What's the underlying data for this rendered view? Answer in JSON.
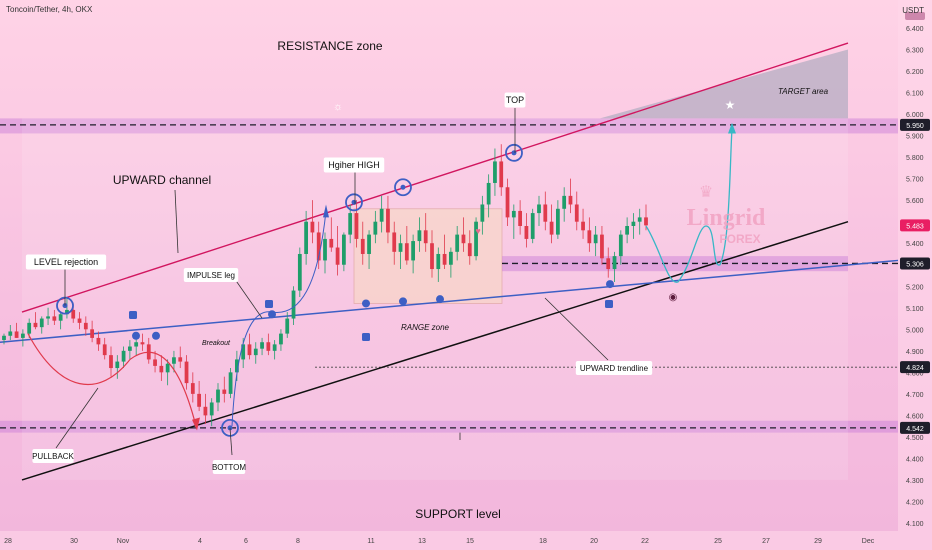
{
  "header": {
    "title": "Toncoin/Tether, 4h, OKX",
    "currency": "USDT"
  },
  "chart_data": {
    "type": "candlestick",
    "y_ticks": [
      4.1,
      4.2,
      4.3,
      4.4,
      4.5,
      4.6,
      4.7,
      4.8,
      4.9,
      5.0,
      5.1,
      5.2,
      5.3,
      5.4,
      5.5,
      5.6,
      5.7,
      5.8,
      5.9,
      6.0,
      6.1,
      6.2,
      6.3,
      6.4
    ],
    "y_tick_labels": [
      "4.100",
      "4.200",
      "4.300",
      "4.400",
      "4.500",
      "4.600",
      "4.700",
      "4.800",
      "4.900",
      "5.000",
      "5.100",
      "5.200",
      "5.300",
      "5.400",
      "5.500",
      "5.600",
      "5.700",
      "5.800",
      "5.900",
      "6.000",
      "6.100",
      "6.200",
      "6.300",
      "6.400"
    ],
    "x_ticks": [
      "28",
      "30",
      "Nov",
      "4",
      "6",
      "8",
      "11",
      "13",
      "15",
      "18",
      "20",
      "22",
      "25",
      "27",
      "29",
      "Dec"
    ],
    "price_badges": [
      {
        "label": "5.950",
        "value": 5.95,
        "color": "#ffffff",
        "bg": "#1e1e2a"
      },
      {
        "label": "5.483",
        "value": 5.483,
        "color": "#ffffff",
        "bg": "#e91e63"
      },
      {
        "label": "5.306",
        "value": 5.306,
        "color": "#ffffff",
        "bg": "#1e1e2a"
      },
      {
        "label": "4.824",
        "value": 4.824,
        "color": "#ffffff",
        "bg": "#1e1e2a"
      },
      {
        "label": "4.542",
        "value": 4.542,
        "color": "#ffffff",
        "bg": "#1e1e2a"
      }
    ],
    "candles": [
      [
        4.95,
        4.98,
        4.93,
        4.97
      ],
      [
        4.97,
        5.02,
        4.95,
        4.99
      ],
      [
        4.99,
        5.03,
        4.96,
        4.96
      ],
      [
        4.96,
        5.0,
        4.92,
        4.98
      ],
      [
        4.98,
        5.05,
        4.96,
        5.03
      ],
      [
        5.03,
        5.08,
        5.0,
        5.01
      ],
      [
        5.01,
        5.06,
        4.98,
        5.05
      ],
      [
        5.05,
        5.1,
        5.02,
        5.06
      ],
      [
        5.06,
        5.09,
        5.02,
        5.04
      ],
      [
        5.04,
        5.08,
        5.0,
        5.07
      ],
      [
        5.07,
        5.15,
        5.05,
        5.09
      ],
      [
        5.09,
        5.12,
        5.03,
        5.05
      ],
      [
        5.05,
        5.08,
        5.0,
        5.03
      ],
      [
        5.03,
        5.06,
        4.97,
        5.0
      ],
      [
        5.0,
        5.04,
        4.94,
        4.96
      ],
      [
        4.96,
        4.99,
        4.9,
        4.93
      ],
      [
        4.93,
        4.96,
        4.86,
        4.88
      ],
      [
        4.88,
        4.92,
        4.78,
        4.82
      ],
      [
        4.82,
        4.88,
        4.77,
        4.85
      ],
      [
        4.85,
        4.92,
        4.82,
        4.9
      ],
      [
        4.9,
        4.95,
        4.86,
        4.92
      ],
      [
        4.92,
        4.97,
        4.88,
        4.94
      ],
      [
        4.94,
        4.98,
        4.9,
        4.93
      ],
      [
        4.93,
        4.96,
        4.84,
        4.86
      ],
      [
        4.86,
        4.9,
        4.8,
        4.83
      ],
      [
        4.83,
        4.88,
        4.76,
        4.8
      ],
      [
        4.8,
        4.86,
        4.74,
        4.84
      ],
      [
        4.84,
        4.9,
        4.8,
        4.87
      ],
      [
        4.87,
        4.92,
        4.82,
        4.85
      ],
      [
        4.85,
        4.88,
        4.72,
        4.75
      ],
      [
        4.75,
        4.8,
        4.66,
        4.7
      ],
      [
        4.7,
        4.76,
        4.62,
        4.64
      ],
      [
        4.64,
        4.7,
        4.56,
        4.6
      ],
      [
        4.6,
        4.68,
        4.55,
        4.66
      ],
      [
        4.66,
        4.75,
        4.62,
        4.72
      ],
      [
        4.72,
        4.78,
        4.66,
        4.7
      ],
      [
        4.7,
        4.82,
        4.68,
        4.8
      ],
      [
        4.8,
        4.9,
        4.76,
        4.86
      ],
      [
        4.86,
        4.96,
        4.82,
        4.93
      ],
      [
        4.93,
        4.98,
        4.86,
        4.88
      ],
      [
        4.88,
        4.94,
        4.84,
        4.91
      ],
      [
        4.91,
        4.96,
        4.88,
        4.94
      ],
      [
        4.94,
        4.98,
        4.88,
        4.9
      ],
      [
        4.9,
        4.95,
        4.86,
        4.93
      ],
      [
        4.93,
        5.0,
        4.9,
        4.98
      ],
      [
        4.98,
        5.08,
        4.96,
        5.05
      ],
      [
        5.05,
        5.2,
        5.02,
        5.18
      ],
      [
        5.18,
        5.38,
        5.15,
        5.35
      ],
      [
        5.35,
        5.55,
        5.3,
        5.5
      ],
      [
        5.5,
        5.6,
        5.4,
        5.45
      ],
      [
        5.45,
        5.5,
        5.28,
        5.32
      ],
      [
        5.32,
        5.45,
        5.26,
        5.42
      ],
      [
        5.42,
        5.52,
        5.36,
        5.38
      ],
      [
        5.38,
        5.48,
        5.25,
        5.3
      ],
      [
        5.3,
        5.45,
        5.27,
        5.44
      ],
      [
        5.44,
        5.58,
        5.4,
        5.54
      ],
      [
        5.54,
        5.6,
        5.38,
        5.42
      ],
      [
        5.42,
        5.5,
        5.3,
        5.35
      ],
      [
        5.35,
        5.46,
        5.28,
        5.44
      ],
      [
        5.44,
        5.55,
        5.4,
        5.5
      ],
      [
        5.5,
        5.62,
        5.45,
        5.56
      ],
      [
        5.56,
        5.62,
        5.4,
        5.45
      ],
      [
        5.45,
        5.5,
        5.3,
        5.36
      ],
      [
        5.36,
        5.44,
        5.28,
        5.4
      ],
      [
        5.4,
        5.48,
        5.3,
        5.32
      ],
      [
        5.32,
        5.44,
        5.26,
        5.41
      ],
      [
        5.41,
        5.52,
        5.36,
        5.46
      ],
      [
        5.46,
        5.54,
        5.36,
        5.4
      ],
      [
        5.4,
        5.46,
        5.24,
        5.28
      ],
      [
        5.28,
        5.38,
        5.22,
        5.35
      ],
      [
        5.35,
        5.44,
        5.28,
        5.3
      ],
      [
        5.3,
        5.38,
        5.24,
        5.36
      ],
      [
        5.36,
        5.48,
        5.32,
        5.44
      ],
      [
        5.44,
        5.52,
        5.36,
        5.4
      ],
      [
        5.4,
        5.46,
        5.3,
        5.34
      ],
      [
        5.34,
        5.52,
        5.32,
        5.5
      ],
      [
        5.5,
        5.62,
        5.44,
        5.58
      ],
      [
        5.58,
        5.72,
        5.52,
        5.68
      ],
      [
        5.68,
        5.84,
        5.62,
        5.78
      ],
      [
        5.78,
        5.86,
        5.62,
        5.66
      ],
      [
        5.66,
        5.7,
        5.48,
        5.52
      ],
      [
        5.52,
        5.58,
        5.42,
        5.55
      ],
      [
        5.55,
        5.6,
        5.44,
        5.48
      ],
      [
        5.48,
        5.54,
        5.38,
        5.42
      ],
      [
        5.42,
        5.56,
        5.4,
        5.54
      ],
      [
        5.54,
        5.62,
        5.48,
        5.58
      ],
      [
        5.58,
        5.64,
        5.46,
        5.5
      ],
      [
        5.5,
        5.58,
        5.4,
        5.44
      ],
      [
        5.44,
        5.6,
        5.42,
        5.56
      ],
      [
        5.56,
        5.66,
        5.5,
        5.62
      ],
      [
        5.62,
        5.7,
        5.54,
        5.58
      ],
      [
        5.58,
        5.64,
        5.46,
        5.5
      ],
      [
        5.5,
        5.56,
        5.42,
        5.46
      ],
      [
        5.46,
        5.52,
        5.36,
        5.4
      ],
      [
        5.4,
        5.48,
        5.34,
        5.44
      ],
      [
        5.44,
        5.48,
        5.3,
        5.33
      ],
      [
        5.33,
        5.38,
        5.24,
        5.28
      ],
      [
        5.28,
        5.36,
        5.22,
        5.34
      ],
      [
        5.34,
        5.46,
        5.3,
        5.44
      ],
      [
        5.44,
        5.52,
        5.4,
        5.48
      ],
      [
        5.48,
        5.54,
        5.42,
        5.5
      ],
      [
        5.5,
        5.56,
        5.44,
        5.52
      ],
      [
        5.52,
        5.58,
        5.46,
        5.483
      ]
    ],
    "annotations": {
      "resistance_zone": "RESISTANCE zone",
      "upward_channel": "UPWARD channel",
      "level_rejection": "LEVEL rejection",
      "impulse_leg": "IMPULSE leg",
      "breakout": "Breakout",
      "higher_high": "Hgiher HIGH",
      "range_zone": "RANGE zone",
      "top": "TOP",
      "target_area": "TARGET area",
      "upward_trendline": "UPWARD trendline",
      "pullback": "PULLBACK",
      "bottom": "BOTTOM",
      "support_level": "SUPPORT level",
      "brand_main": "Lingrid",
      "brand_sub": "FOREX"
    }
  }
}
